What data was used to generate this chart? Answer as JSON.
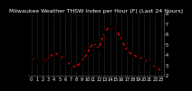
{
  "title": "Milwaukee Weather THSW Index per Hour (F) (Last 24 Hours)",
  "x": [
    0,
    1,
    2,
    3,
    4,
    5,
    6,
    7,
    8,
    9,
    10,
    11,
    12,
    13,
    14,
    15,
    16,
    17,
    18,
    19,
    20,
    21,
    22,
    23
  ],
  "y": [
    38,
    35,
    33,
    36,
    42,
    40,
    36,
    30,
    28,
    34,
    42,
    52,
    46,
    62,
    68,
    65,
    55,
    44,
    40,
    38,
    36,
    32,
    28,
    25
  ],
  "xlim": [
    -0.5,
    23.5
  ],
  "ylim": [
    20,
    80
  ],
  "yticks": [
    20,
    30,
    40,
    50,
    60,
    70,
    80
  ],
  "ytick_labels": [
    "2",
    "3",
    "4",
    "5",
    "6",
    "7",
    "8"
  ],
  "xticks": [
    0,
    1,
    2,
    3,
    4,
    5,
    6,
    7,
    8,
    9,
    10,
    11,
    12,
    13,
    14,
    15,
    16,
    17,
    18,
    19,
    20,
    21,
    22,
    23
  ],
  "xtick_labels": [
    "0",
    "1",
    "2",
    "3",
    "4",
    "5",
    "6",
    "7",
    "8",
    "9",
    "10",
    "11",
    "12",
    "13",
    "14",
    "15",
    "16",
    "17",
    "18",
    "19",
    "20",
    "21",
    "22",
    "23"
  ],
  "line_color": "#ff0000",
  "marker_color": "#000000",
  "background_color": "#000000",
  "plot_bg_color": "#000000",
  "grid_color": "#555555",
  "title_color": "#ffffff",
  "tick_color": "#ffffff",
  "title_fontsize": 4.5,
  "tick_fontsize": 3.5
}
